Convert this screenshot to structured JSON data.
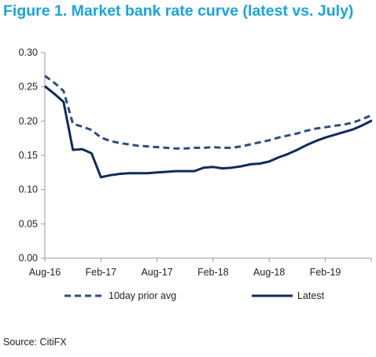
{
  "title": "Figure 1. Market bank rate curve (latest vs. July)",
  "source": "Source: CitiFX",
  "colors": {
    "title": "#1aa3dc",
    "latest": "#0f2a5c",
    "prior": "#2c4a86",
    "axis": "#999999"
  },
  "chart_data": {
    "type": "line",
    "title": "Figure 1. Market bank rate curve (latest vs. July)",
    "xlabel": "",
    "ylabel": "",
    "x_ticks": [
      "Aug-16",
      "Feb-17",
      "Aug-17",
      "Feb-18",
      "Aug-18",
      "Feb-19"
    ],
    "y_ticks": [
      "0.00",
      "0.05",
      "0.10",
      "0.15",
      "0.20",
      "0.25",
      "0.30"
    ],
    "ylim": [
      0,
      0.3
    ],
    "x_unit": "months since Aug-16",
    "xlim": [
      0,
      35
    ],
    "grid": false,
    "legend_position": "bottom",
    "series": [
      {
        "name": "10day prior avg",
        "style": "dashed",
        "points": [
          [
            0,
            0.266
          ],
          [
            1,
            0.256
          ],
          [
            2,
            0.244
          ],
          [
            3,
            0.196
          ],
          [
            4,
            0.192
          ],
          [
            5,
            0.187
          ],
          [
            6,
            0.176
          ],
          [
            7,
            0.171
          ],
          [
            8,
            0.168
          ],
          [
            9,
            0.166
          ],
          [
            10,
            0.164
          ],
          [
            11,
            0.163
          ],
          [
            12,
            0.162
          ],
          [
            13,
            0.161
          ],
          [
            14,
            0.16
          ],
          [
            15,
            0.16
          ],
          [
            16,
            0.161
          ],
          [
            17,
            0.161
          ],
          [
            18,
            0.162
          ],
          [
            19,
            0.161
          ],
          [
            20,
            0.161
          ],
          [
            21,
            0.163
          ],
          [
            22,
            0.166
          ],
          [
            23,
            0.169
          ],
          [
            24,
            0.172
          ],
          [
            25,
            0.176
          ],
          [
            26,
            0.179
          ],
          [
            27,
            0.182
          ],
          [
            28,
            0.186
          ],
          [
            29,
            0.189
          ],
          [
            30,
            0.191
          ],
          [
            31,
            0.193
          ],
          [
            32,
            0.195
          ],
          [
            33,
            0.198
          ],
          [
            34,
            0.203
          ],
          [
            35,
            0.209
          ]
        ]
      },
      {
        "name": "Latest",
        "style": "solid",
        "points": [
          [
            0,
            0.251
          ],
          [
            1,
            0.24
          ],
          [
            2,
            0.228
          ],
          [
            3,
            0.158
          ],
          [
            4,
            0.159
          ],
          [
            5,
            0.153
          ],
          [
            6,
            0.118
          ],
          [
            7,
            0.121
          ],
          [
            8,
            0.123
          ],
          [
            9,
            0.124
          ],
          [
            10,
            0.124
          ],
          [
            11,
            0.124
          ],
          [
            12,
            0.125
          ],
          [
            13,
            0.126
          ],
          [
            14,
            0.127
          ],
          [
            15,
            0.127
          ],
          [
            16,
            0.127
          ],
          [
            17,
            0.132
          ],
          [
            18,
            0.133
          ],
          [
            19,
            0.131
          ],
          [
            20,
            0.132
          ],
          [
            21,
            0.134
          ],
          [
            22,
            0.137
          ],
          [
            23,
            0.138
          ],
          [
            24,
            0.141
          ],
          [
            25,
            0.147
          ],
          [
            26,
            0.152
          ],
          [
            27,
            0.158
          ],
          [
            28,
            0.165
          ],
          [
            29,
            0.171
          ],
          [
            30,
            0.176
          ],
          [
            31,
            0.18
          ],
          [
            32,
            0.184
          ],
          [
            33,
            0.188
          ],
          [
            34,
            0.194
          ],
          [
            35,
            0.201
          ]
        ]
      }
    ]
  }
}
